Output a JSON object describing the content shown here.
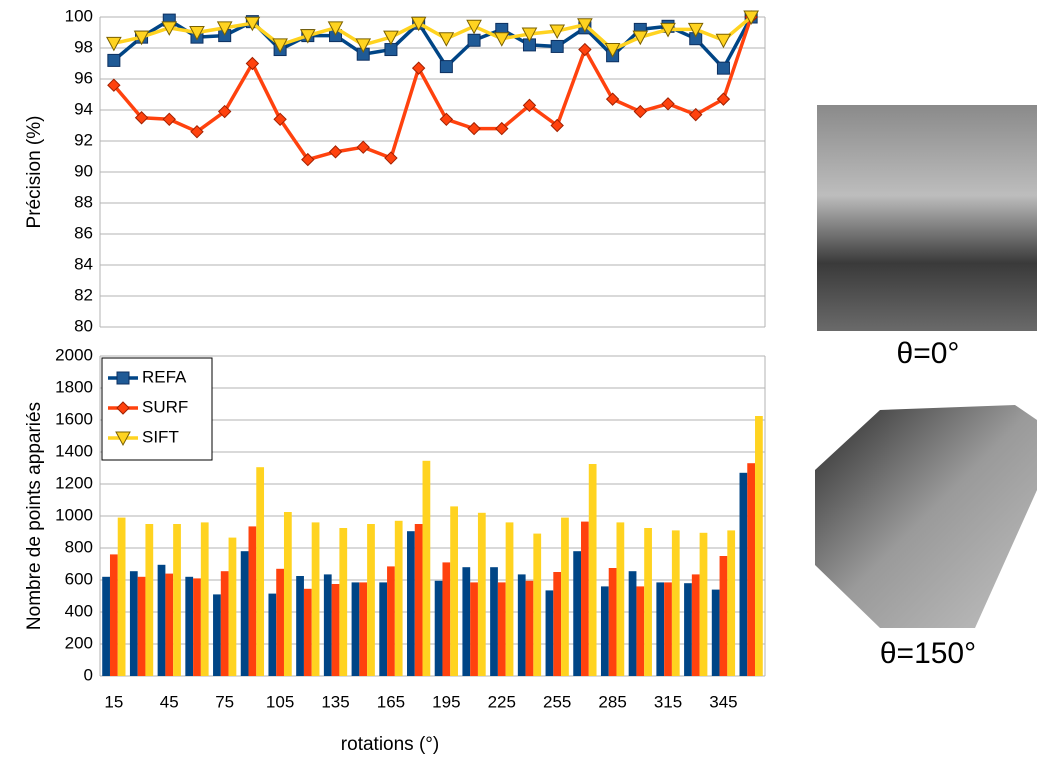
{
  "chart_data": [
    {
      "type": "line",
      "ylabel": "Précision (%)",
      "ylim": [
        80,
        100
      ],
      "yticks": [
        80,
        82,
        84,
        86,
        88,
        90,
        92,
        94,
        96,
        98,
        100
      ],
      "grid": true,
      "series": [
        {
          "color": "#004586",
          "marker": "square",
          "marker_color": "#1f5a96",
          "values": [
            97.2,
            98.7,
            99.8,
            98.7,
            98.8,
            99.7,
            97.9,
            98.8,
            98.8,
            97.6,
            97.9,
            99.6,
            96.8,
            98.5,
            99.2,
            98.2,
            98.1,
            99.3,
            97.5,
            99.2,
            99.4,
            98.6,
            96.7,
            100
          ]
        },
        {
          "color": "#ff420e",
          "marker": "diamond",
          "marker_color": "#ff420e",
          "values": [
            95.6,
            93.5,
            93.4,
            92.6,
            93.9,
            97.0,
            93.4,
            90.8,
            91.3,
            91.6,
            90.9,
            96.7,
            93.4,
            92.8,
            92.8,
            94.3,
            93.0,
            97.9,
            94.7,
            93.9,
            94.4,
            93.7,
            94.7,
            100
          ]
        },
        {
          "color": "#ffd320",
          "marker": "triangle-down",
          "marker_color": "#ffd320",
          "values": [
            98.3,
            98.7,
            99.3,
            99.0,
            99.3,
            99.6,
            98.2,
            98.8,
            99.3,
            98.2,
            98.7,
            99.6,
            98.6,
            99.4,
            98.6,
            98.9,
            99.1,
            99.5,
            97.9,
            98.7,
            99.2,
            99.2,
            98.5,
            100
          ]
        }
      ]
    },
    {
      "type": "bar",
      "ylabel": "Nombre de points appariés",
      "xlabel": "rotations (°)",
      "categories": [
        "15",
        null,
        "45",
        null,
        "75",
        null,
        "105",
        null,
        "135",
        null,
        "165",
        null,
        "195",
        null,
        "225",
        null,
        "255",
        null,
        "285",
        null,
        "315",
        null,
        "345",
        null
      ],
      "ylim": [
        0,
        2000
      ],
      "yticks": [
        0,
        200,
        400,
        600,
        800,
        1000,
        1200,
        1400,
        1600,
        1800,
        2000
      ],
      "grid": true,
      "legend": "top-left",
      "series": [
        {
          "name": "REFA",
          "color": "#004586",
          "values": [
            620,
            655,
            695,
            620,
            510,
            780,
            515,
            625,
            635,
            585,
            585,
            905,
            595,
            680,
            680,
            635,
            535,
            780,
            560,
            655,
            585,
            580,
            540,
            1270
          ]
        },
        {
          "name": "SURF",
          "color": "#ff420e",
          "values": [
            760,
            620,
            640,
            610,
            655,
            935,
            670,
            545,
            575,
            585,
            685,
            950,
            710,
            585,
            585,
            595,
            650,
            965,
            675,
            560,
            585,
            635,
            750,
            1330
          ]
        },
        {
          "name": "SIFT",
          "color": "#ffd320",
          "values": [
            990,
            950,
            950,
            960,
            865,
            1305,
            1025,
            960,
            925,
            950,
            970,
            1345,
            1060,
            1020,
            960,
            890,
            990,
            1325,
            960,
            925,
            910,
            895,
            910,
            1625
          ]
        }
      ]
    }
  ],
  "images": [
    {
      "caption": "θ=0°"
    },
    {
      "caption": "θ=150°"
    }
  ]
}
